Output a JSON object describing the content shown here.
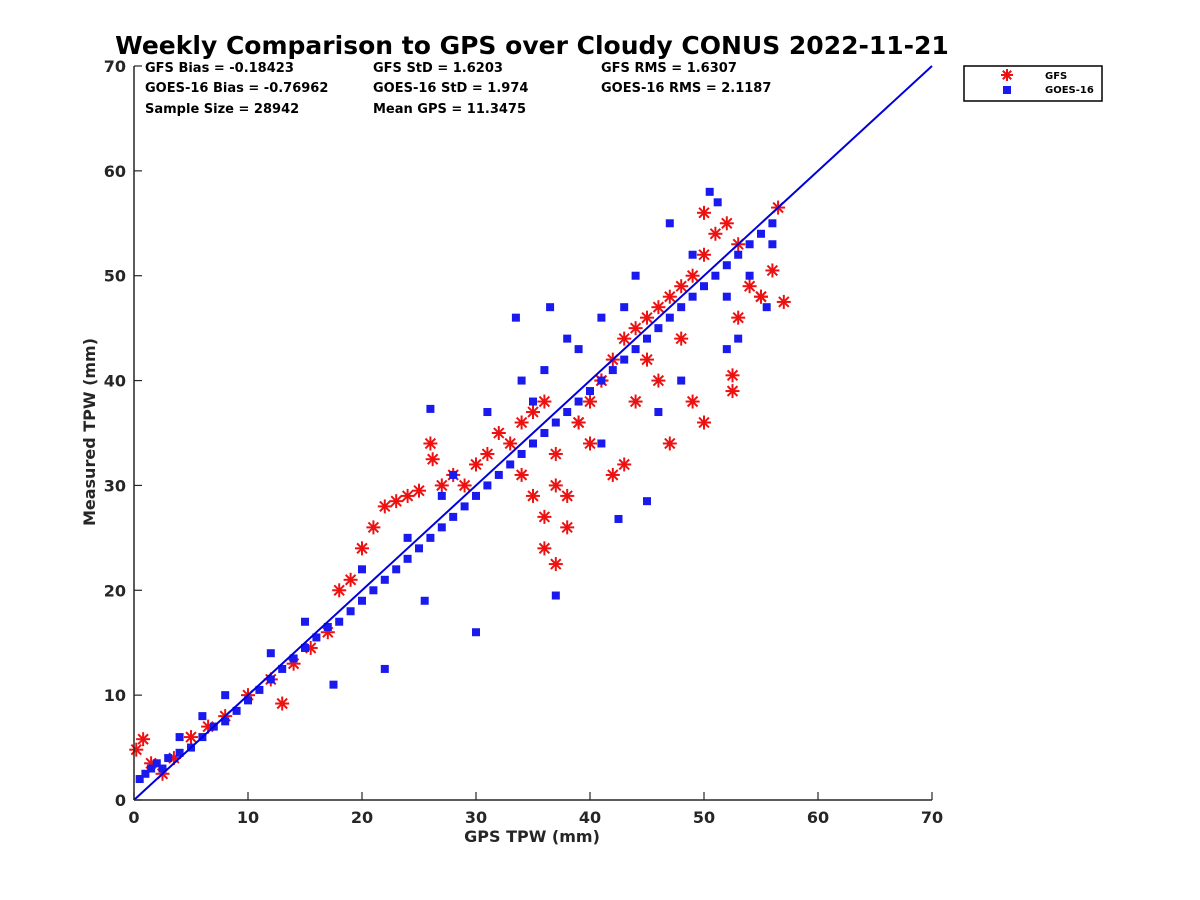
{
  "chart_data": {
    "type": "scatter",
    "title": "Weekly Comparison to GPS over Cloudy CONUS 2022-11-21",
    "xlabel": "GPS TPW (mm)",
    "ylabel": "Measured TPW (mm)",
    "xlim": [
      0,
      70
    ],
    "ylim": [
      0,
      70
    ],
    "xticks": [
      "0",
      "10",
      "20",
      "30",
      "40",
      "50",
      "60",
      "70"
    ],
    "yticks": [
      "0",
      "10",
      "20",
      "30",
      "40",
      "50",
      "60",
      "70"
    ],
    "grid": false,
    "legend_position": "outside-top-right",
    "stats": [
      {
        "text": "GFS Bias = -0.18423"
      },
      {
        "text": "GFS StD = 1.6203"
      },
      {
        "text": "GFS RMS = 1.6307"
      },
      {
        "text": "GOES-16 Bias = -0.76962"
      },
      {
        "text": "GOES-16 StD = 1.974"
      },
      {
        "text": "GOES-16 RMS = 2.1187"
      },
      {
        "text": "Sample Size = 28942"
      },
      {
        "text": "Mean GPS = 11.3475"
      }
    ],
    "reference_line": {
      "x": [
        0,
        70
      ],
      "y": [
        0,
        70
      ],
      "color": "#0000dd"
    },
    "series": [
      {
        "name": "GFS",
        "marker": "asterisk",
        "color": "#ee1111",
        "x": [
          0.2,
          0.8,
          1.5,
          2.5,
          3.5,
          5,
          6.5,
          8,
          10,
          12,
          13,
          14,
          15.5,
          17,
          18,
          19,
          20,
          21,
          22,
          23,
          24,
          25,
          26,
          26.2,
          27,
          28,
          29,
          30,
          31,
          32,
          33,
          34,
          35,
          36,
          37,
          38,
          36,
          37,
          38,
          39,
          40,
          41,
          42,
          43,
          44,
          45,
          46,
          47,
          48,
          49,
          50,
          51,
          52,
          53,
          54,
          55,
          56,
          57,
          49,
          50,
          52.5,
          52.5,
          43,
          42,
          37,
          36,
          35,
          34,
          40,
          44,
          46,
          48,
          50,
          45,
          47,
          41,
          39,
          55,
          53,
          56.5
        ],
        "y": [
          4.8,
          5.8,
          3.5,
          2.5,
          4.0,
          6.0,
          7.0,
          8.0,
          10.0,
          11.5,
          9.2,
          13.0,
          14.5,
          16.0,
          20.0,
          21.0,
          24.0,
          26.0,
          28.0,
          28.5,
          29.0,
          29.5,
          34.0,
          32.5,
          30.0,
          31.0,
          30.0,
          32.0,
          33.0,
          35.0,
          34.0,
          36.0,
          37.0,
          38.0,
          30.0,
          29.0,
          24.0,
          22.5,
          26.0,
          36.0,
          38.0,
          40.0,
          42.0,
          44.0,
          45.0,
          46.0,
          47.0,
          48.0,
          49.0,
          50.0,
          52.0,
          54.0,
          55.0,
          53.0,
          49.0,
          48.0,
          50.5,
          47.5,
          38.0,
          36.0,
          39.0,
          40.5,
          32.0,
          31.0,
          33.0,
          27.0,
          29.0,
          31.0,
          34.0,
          38.0,
          40.0,
          44.0,
          56.0,
          42.0,
          34.0,
          40.0,
          36.0,
          48.0,
          46.0,
          56.5
        ]
      },
      {
        "name": "GOES-16",
        "marker": "square",
        "color": "#1a1aee",
        "x": [
          0.5,
          1,
          1.5,
          2,
          3,
          4,
          5,
          6,
          7,
          8,
          9,
          10,
          11,
          12,
          13,
          14,
          15,
          16,
          17,
          18,
          19,
          20,
          21,
          22,
          23,
          24,
          25,
          26,
          27,
          28,
          29,
          30,
          31,
          32,
          33,
          34,
          35,
          36,
          37,
          38,
          39,
          40,
          41,
          42,
          43,
          44,
          45,
          46,
          47,
          48,
          49,
          50,
          51,
          52,
          53,
          54,
          55,
          56,
          26,
          37,
          42.5,
          45,
          55.5,
          50.5,
          51.2,
          33.5,
          36.5,
          22,
          17.5,
          25.5,
          30,
          41,
          46,
          48,
          52,
          53,
          54,
          49,
          43,
          39,
          35,
          27,
          24,
          20,
          15,
          12,
          8,
          6,
          4,
          2.5,
          56,
          52,
          47,
          44,
          41,
          38,
          36,
          34,
          31,
          28
        ],
        "y": [
          2,
          2.5,
          3,
          3.5,
          4,
          4.5,
          5,
          6,
          7,
          7.5,
          8.5,
          9.5,
          10.5,
          11.5,
          12.5,
          13.5,
          14.5,
          15.5,
          16.5,
          17,
          18,
          19,
          20,
          21,
          22,
          23,
          24,
          25,
          26,
          27,
          28,
          29,
          30,
          31,
          32,
          33,
          34,
          35,
          36,
          37,
          38,
          39,
          40,
          41,
          42,
          43,
          44,
          45,
          46,
          47,
          48,
          49,
          50,
          51,
          52,
          53,
          54,
          55,
          37.3,
          19.5,
          26.8,
          28.5,
          47,
          58,
          57,
          46,
          47,
          12.5,
          11,
          19,
          16,
          34,
          37,
          40,
          43,
          44,
          50,
          52,
          47,
          43,
          38,
          29,
          25,
          22,
          17,
          14,
          10,
          8,
          6,
          3,
          53,
          48,
          55,
          50,
          46,
          44,
          41,
          40,
          37,
          31
        ]
      }
    ]
  }
}
